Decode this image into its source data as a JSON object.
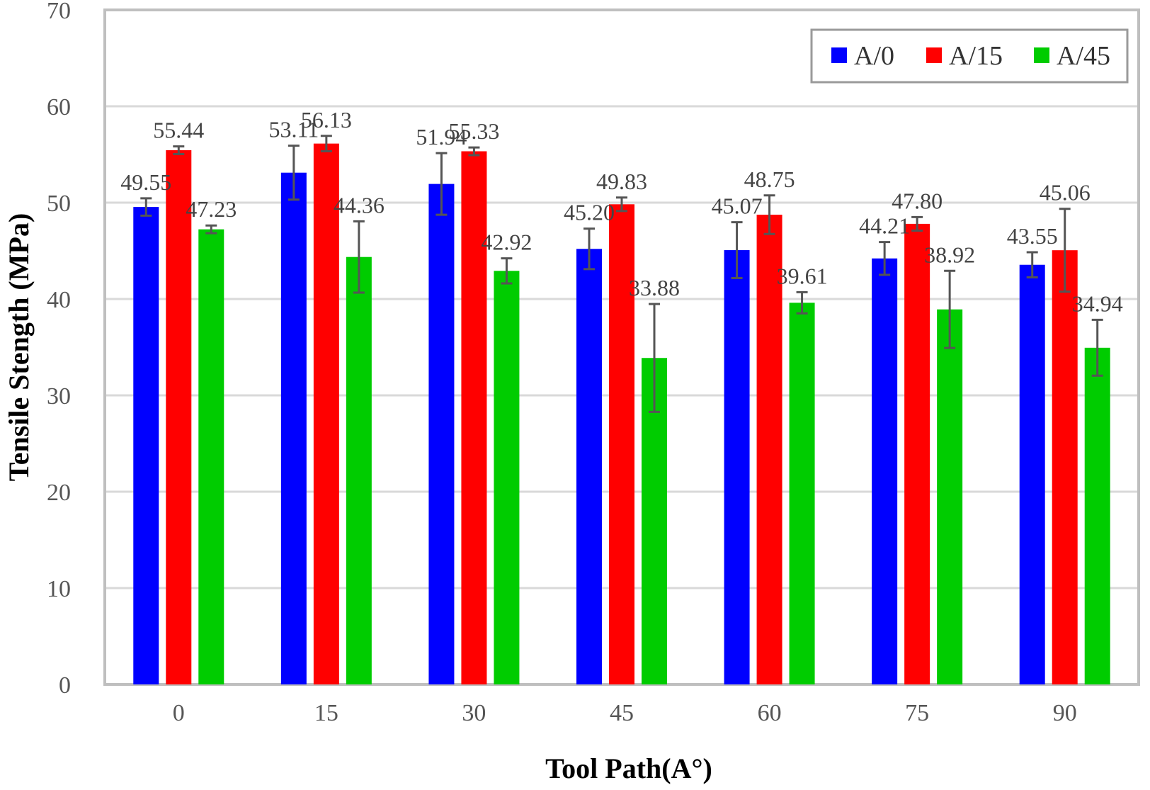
{
  "chart_data": {
    "type": "bar",
    "title": "",
    "xlabel": "Tool Path(A°)",
    "ylabel": "Tensile Stength (MPa)",
    "ylim": [
      0,
      70
    ],
    "yticks": [
      0,
      10,
      20,
      30,
      40,
      50,
      60,
      70
    ],
    "categories": [
      "0",
      "15",
      "30",
      "45",
      "60",
      "75",
      "90"
    ],
    "grid": true,
    "legend_position": "top-right",
    "series": [
      {
        "name": "A/0",
        "color": "#0000FF",
        "values": [
          49.55,
          53.11,
          51.94,
          45.2,
          45.07,
          44.21,
          43.55
        ],
        "labels": [
          "49.55",
          "53.11",
          "51.94",
          "45.20",
          "45.07",
          "44.21",
          "43.55"
        ],
        "error": [
          0.9,
          2.8,
          3.2,
          2.1,
          2.9,
          1.7,
          1.3
        ]
      },
      {
        "name": "A/15",
        "color": "#FF0000",
        "values": [
          55.44,
          56.13,
          55.33,
          49.83,
          48.75,
          47.8,
          45.06
        ],
        "labels": [
          "55.44",
          "56.13",
          "55.33",
          "49.83",
          "48.75",
          "47.80",
          "45.06"
        ],
        "error": [
          0.4,
          0.8,
          0.4,
          0.7,
          2.0,
          0.7,
          4.3
        ]
      },
      {
        "name": "A/45",
        "color": "#00CC00",
        "values": [
          47.23,
          44.36,
          42.92,
          33.88,
          39.61,
          38.92,
          34.94
        ],
        "labels": [
          "47.23",
          "44.36",
          "42.92",
          "33.88",
          "39.61",
          "38.92",
          "34.94"
        ],
        "error": [
          0.4,
          3.7,
          1.3,
          5.6,
          1.1,
          4.0,
          2.9
        ]
      }
    ]
  }
}
